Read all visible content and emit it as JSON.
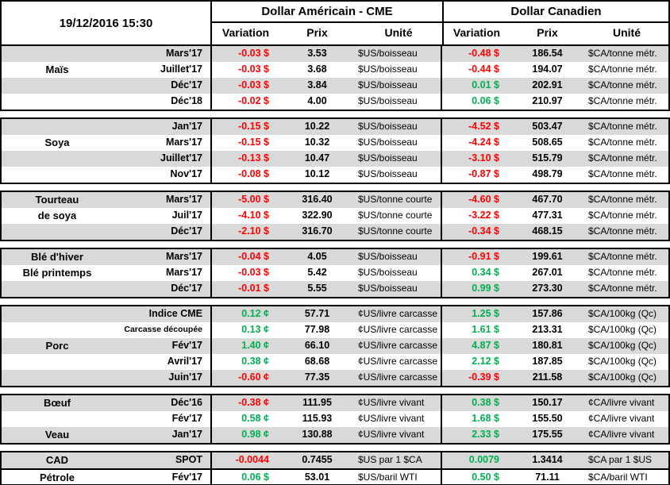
{
  "titlebar": {
    "timestamp": "19/12/2016 15:30"
  },
  "header": {
    "us_title": "Dollar Américain - CME",
    "ca_title": "Dollar Canadien",
    "variation": "Variation",
    "prix": "Prix",
    "unite": "Unité"
  },
  "colors": {
    "negative": "#FF0000",
    "positive": "#00B050",
    "stripe": "#D9D9D9",
    "border": "#000000"
  },
  "groups": [
    {
      "name": "Maïs",
      "rows": [
        {
          "label": "",
          "month": "Mars'17",
          "us_var": "-0.03 $",
          "us_prix": "3.53",
          "us_unit": "$US/boisseau",
          "ca_var": "-0.48 $",
          "ca_prix": "186.54",
          "ca_unit": "$CA/tonne métr."
        },
        {
          "label": "Maïs",
          "month": "Juillet'17",
          "us_var": "-0.03 $",
          "us_prix": "3.68",
          "us_unit": "$US/boisseau",
          "ca_var": "-0.44 $",
          "ca_prix": "194.07",
          "ca_unit": "$CA/tonne métr."
        },
        {
          "label": "",
          "month": "Déc'17",
          "us_var": "-0.03 $",
          "us_prix": "3.84",
          "us_unit": "$US/boisseau",
          "ca_var": "0.01 $",
          "ca_prix": "202.91",
          "ca_unit": "$CA/tonne métr."
        },
        {
          "label": "",
          "month": "Déc'18",
          "us_var": "-0.02 $",
          "us_prix": "4.00",
          "us_unit": "$US/boisseau",
          "ca_var": "0.06 $",
          "ca_prix": "210.97",
          "ca_unit": "$CA/tonne métr."
        }
      ]
    },
    {
      "name": "Soya",
      "rows": [
        {
          "label": "",
          "month": "Jan'17",
          "us_var": "-0.15 $",
          "us_prix": "10.22",
          "us_unit": "$US/boisseau",
          "ca_var": "-4.52 $",
          "ca_prix": "503.47",
          "ca_unit": "$CA/tonne métr."
        },
        {
          "label": "Soya",
          "month": "Mars'17",
          "us_var": "-0.15 $",
          "us_prix": "10.32",
          "us_unit": "$US/boisseau",
          "ca_var": "-4.24 $",
          "ca_prix": "508.65",
          "ca_unit": "$CA/tonne métr."
        },
        {
          "label": "",
          "month": "Juillet'17",
          "us_var": "-0.13 $",
          "us_prix": "10.47",
          "us_unit": "$US/boisseau",
          "ca_var": "-3.10 $",
          "ca_prix": "515.79",
          "ca_unit": "$CA/tonne métr."
        },
        {
          "label": "",
          "month": "Nov'17",
          "us_var": "-0.08 $",
          "us_prix": "10.12",
          "us_unit": "$US/boisseau",
          "ca_var": "-0.87 $",
          "ca_prix": "498.79",
          "ca_unit": "$CA/tonne métr."
        }
      ]
    },
    {
      "name": "Tourteau de soya",
      "rows": [
        {
          "label": "Tourteau",
          "month": "Mars'17",
          "us_var": "-5.00 $",
          "us_prix": "316.40",
          "us_unit": "$US/tonne courte",
          "ca_var": "-4.60 $",
          "ca_prix": "467.70",
          "ca_unit": "$CA/tonne métr."
        },
        {
          "label": "de soya",
          "month": "Juil'17",
          "us_var": "-4.10 $",
          "us_prix": "322.90",
          "us_unit": "$US/tonne courte",
          "ca_var": "-3.22 $",
          "ca_prix": "477.31",
          "ca_unit": "$CA/tonne métr."
        },
        {
          "label": "",
          "month": "Déc'17",
          "us_var": "-2.10 $",
          "us_prix": "316.70",
          "us_unit": "$US/tonne courte",
          "ca_var": "-0.34 $",
          "ca_prix": "468.15",
          "ca_unit": "$CA/tonne métr."
        }
      ]
    },
    {
      "name": "Blé",
      "rows": [
        {
          "label": "Blé d'hiver",
          "month": "Mars'17",
          "us_var": "-0.04 $",
          "us_prix": "4.05",
          "us_unit": "$US/boisseau",
          "ca_var": "-0.91 $",
          "ca_prix": "199.61",
          "ca_unit": "$CA/tonne métr."
        },
        {
          "label": "Blé printemps",
          "month": "Mars'17",
          "us_var": "-0.03 $",
          "us_prix": "5.42",
          "us_unit": "$US/boisseau",
          "ca_var": "0.34 $",
          "ca_prix": "267.01",
          "ca_unit": "$CA/tonne métr."
        },
        {
          "label": "",
          "month": "Déc'17",
          "us_var": "-0.01 $",
          "us_prix": "5.55",
          "us_unit": "$US/boisseau",
          "ca_var": "0.99 $",
          "ca_prix": "273.30",
          "ca_unit": "$CA/tonne métr."
        }
      ]
    },
    {
      "name": "Porc",
      "rows": [
        {
          "label": "",
          "month": "Indice CME",
          "us_var": "0.12 ¢",
          "us_prix": "57.71",
          "us_unit": "¢US/livre carcasse",
          "ca_var": "1.25 $",
          "ca_prix": "157.86",
          "ca_unit": "$CA/100kg (Qc)"
        },
        {
          "label": "",
          "month": "Carcasse découpée",
          "small": true,
          "us_var": "0.13 ¢",
          "us_prix": "77.98",
          "us_unit": "¢US/livre carcasse",
          "ca_var": "1.61 $",
          "ca_prix": "213.31",
          "ca_unit": "$CA/100kg (Qc)"
        },
        {
          "label": "Porc",
          "month": "Fév'17",
          "us_var": "1.40 ¢",
          "us_prix": "66.10",
          "us_unit": "¢US/livre carcasse",
          "ca_var": "4.87 $",
          "ca_prix": "180.81",
          "ca_unit": "$CA/100kg (Qc)"
        },
        {
          "label": "",
          "month": "Avril'17",
          "us_var": "0.38 ¢",
          "us_prix": "68.68",
          "us_unit": "¢US/livre carcasse",
          "ca_var": "2.12 $",
          "ca_prix": "187.85",
          "ca_unit": "$CA/100kg (Qc)"
        },
        {
          "label": "",
          "month": "Juin'17",
          "us_var": "-0.60 ¢",
          "us_prix": "77.35",
          "us_unit": "¢US/livre carcasse",
          "ca_var": "-0.39 $",
          "ca_prix": "211.58",
          "ca_unit": "$CA/100kg (Qc)"
        }
      ]
    },
    {
      "name": "Bœuf / Veau",
      "rows": [
        {
          "label": "Bœuf",
          "month": "Déc'16",
          "us_var": "-0.38 ¢",
          "us_prix": "111.95",
          "us_unit": "¢US/livre vivant",
          "ca_var": "0.38 $",
          "ca_prix": "150.17",
          "ca_unit": "¢CA/livre vivant"
        },
        {
          "label": "",
          "month": "Fév'17",
          "us_var": "0.58 ¢",
          "us_prix": "115.93",
          "us_unit": "¢US/livre vivant",
          "ca_var": "1.68 $",
          "ca_prix": "155.50",
          "ca_unit": "¢CA/livre vivant"
        },
        {
          "label": "Veau",
          "month": "Jan'17",
          "us_var": "0.98 ¢",
          "us_prix": "130.88",
          "us_unit": "¢US/livre vivant",
          "ca_var": "2.33 $",
          "ca_prix": "175.55",
          "ca_unit": "¢CA/livre vivant"
        }
      ]
    },
    {
      "name": "CAD / Pétrole",
      "rows": [
        {
          "label": "CAD",
          "month": "SPOT",
          "us_var": "-0.0044",
          "us_prix": "0.7455",
          "us_unit": "$US par 1 $CA",
          "ca_var": "0.0079",
          "ca_prix": "1.3414",
          "ca_unit": "$CA par 1 $US"
        },
        {
          "label": "Pétrole",
          "month": "Fév'17",
          "sep": true,
          "us_var": "0.06 $",
          "us_prix": "53.01",
          "us_unit": "$US/baril WTI",
          "ca_var": "0.50 $",
          "ca_prix": "71.11",
          "ca_unit": "$CA/baril WTI"
        }
      ]
    }
  ]
}
